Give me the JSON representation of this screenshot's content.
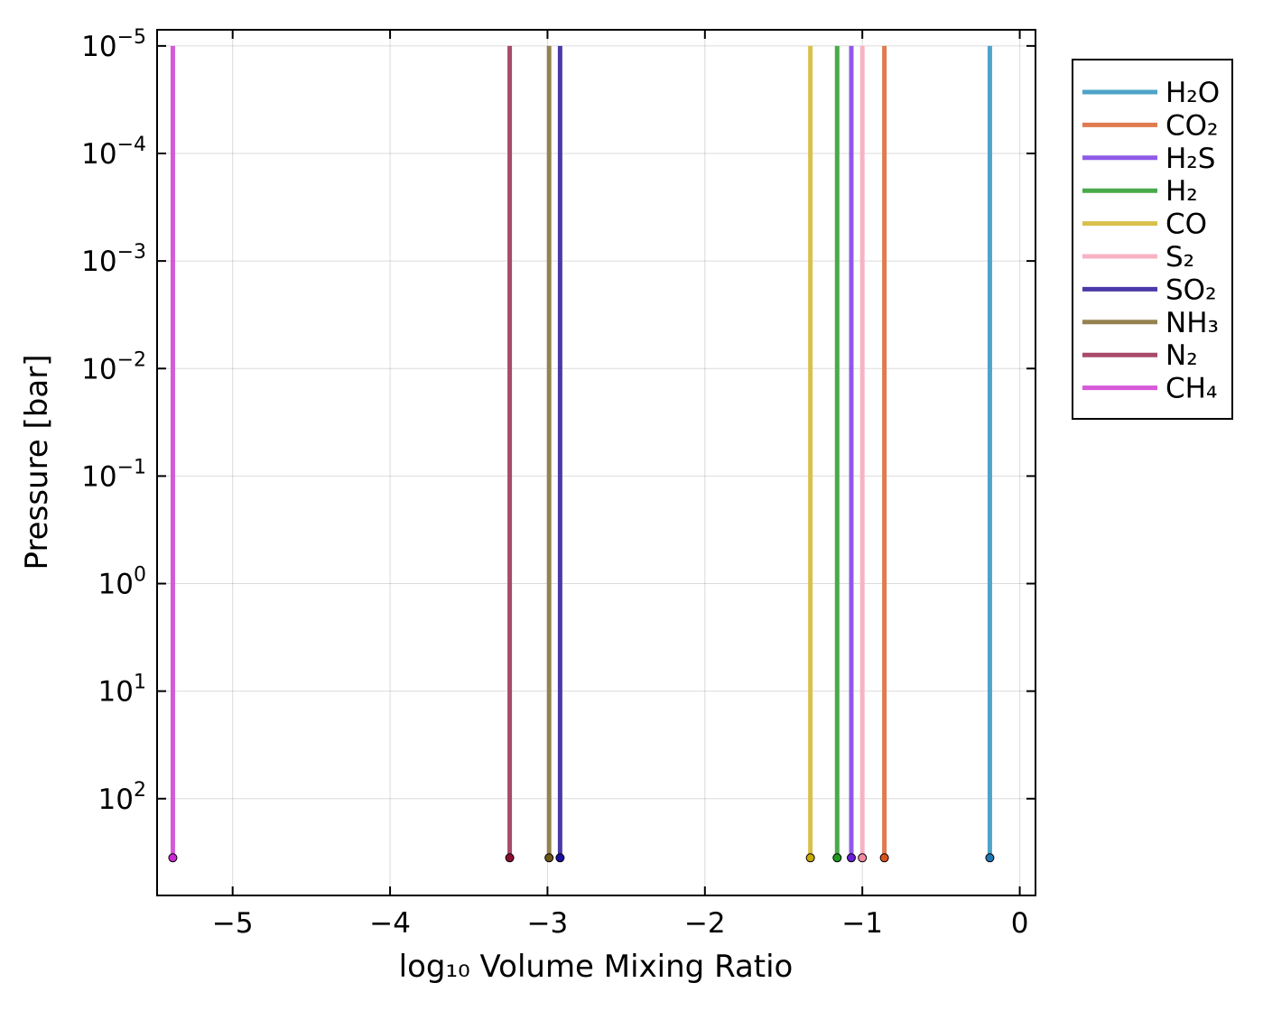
{
  "chart_data": {
    "type": "line",
    "xlabel": "log₁₀ Volume Mixing Ratio",
    "ylabel": "Pressure [bar]",
    "xlim": [
      -5.48,
      0.1
    ],
    "x_ticks": [
      -5,
      -4,
      -3,
      -2,
      -1,
      0
    ],
    "x_tick_labels": [
      "−5",
      "−4",
      "−3",
      "−2",
      "−1",
      "0"
    ],
    "y_scale": "log",
    "y_inverted": true,
    "y_ticks": [
      {
        "exponent": "−5",
        "log_value": -5
      },
      {
        "exponent": "−4",
        "log_value": -4
      },
      {
        "exponent": "−3",
        "log_value": -3
      },
      {
        "exponent": "−2",
        "log_value": -2
      },
      {
        "exponent": "−1",
        "log_value": -1
      },
      {
        "exponent": "0",
        "log_value": 0
      },
      {
        "exponent": "1",
        "log_value": 1
      },
      {
        "exponent": "2",
        "log_value": 2
      }
    ],
    "y_tick_base": "10",
    "ylim_log": [
      -5.15,
      2.9
    ],
    "grid": true,
    "legend_position": "outside-right-top",
    "profile_top_log_p": -5,
    "surface_log_p": 2.55,
    "series": [
      {
        "name": "H₂O",
        "x": -0.19,
        "color": "#4fa3c8",
        "marker_color": "#1f77b4"
      },
      {
        "name": "CO₂",
        "x": -0.86,
        "color": "#e07b4f",
        "marker_color": "#d9531e"
      },
      {
        "name": "H₂S",
        "x": -1.07,
        "color": "#8f5ae8",
        "marker_color": "#6a1fd9"
      },
      {
        "name": "H₂",
        "x": -1.16,
        "color": "#4aaa4a",
        "marker_color": "#1f9a1f"
      },
      {
        "name": "CO",
        "x": -1.33,
        "color": "#d9c04a",
        "marker_color": "#c9a800"
      },
      {
        "name": "S₂",
        "x": -1.0,
        "color": "#f7b3c2",
        "marker_color": "#f08aa0"
      },
      {
        "name": "SO₂",
        "x": -2.92,
        "color": "#4a3aa8",
        "marker_color": "#1a0fa0"
      },
      {
        "name": "NH₃",
        "x": -2.99,
        "color": "#958250",
        "marker_color": "#6b5518"
      },
      {
        "name": "N₂",
        "x": -3.24,
        "color": "#a84a6a",
        "marker_color": "#8a1030"
      },
      {
        "name": "CH₄",
        "x": -5.38,
        "color": "#d65ad9",
        "marker_color": "#c92ad0"
      }
    ]
  }
}
